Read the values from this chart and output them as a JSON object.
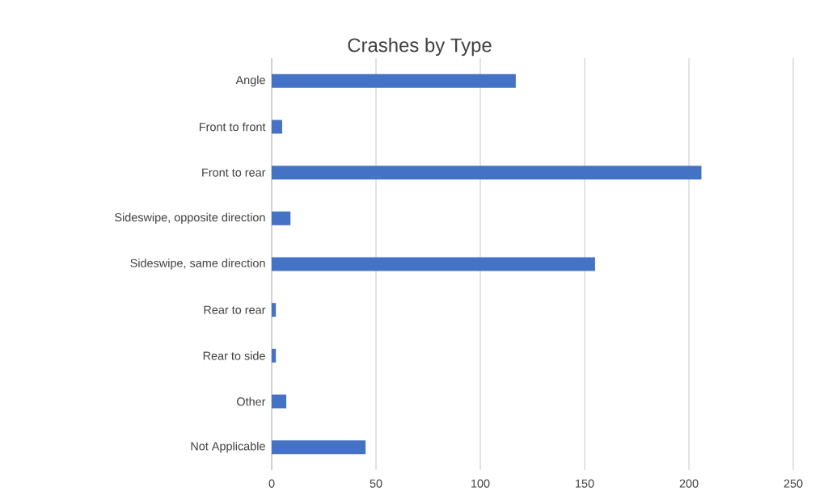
{
  "chart_data": {
    "type": "bar",
    "orientation": "horizontal",
    "title": "Crashes by Type",
    "categories": [
      "Angle",
      "Front to front",
      "Front to rear",
      "Sideswipe, opposite direction",
      "Sideswipe, same direction",
      "Rear to rear",
      "Rear to side",
      "Other",
      "Not Applicable"
    ],
    "values": [
      117,
      5,
      206,
      9,
      155,
      2,
      2,
      7,
      45
    ],
    "color": "#4472c4",
    "xlim": [
      0,
      250
    ],
    "xticks": [
      0,
      50,
      100,
      150,
      200,
      250
    ],
    "grid": "x"
  }
}
